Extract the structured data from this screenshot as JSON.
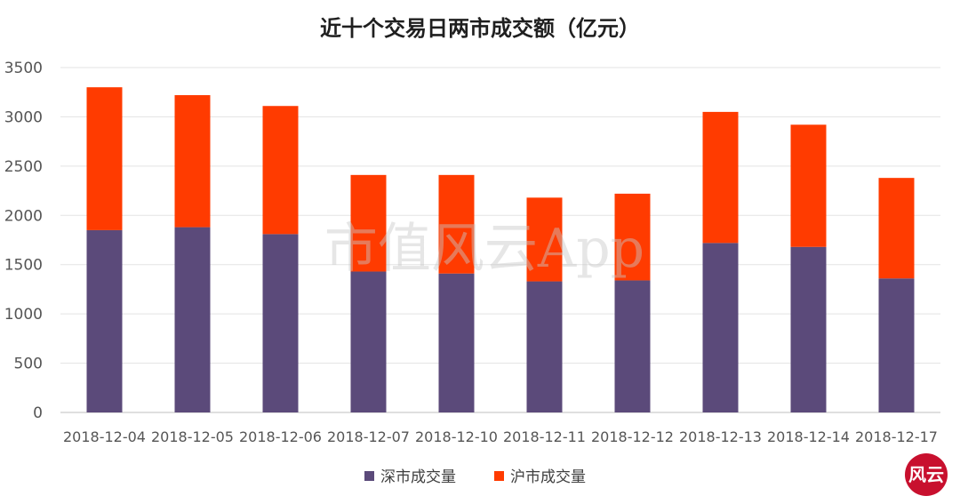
{
  "chart_data": {
    "type": "bar",
    "stacked": true,
    "title": "近十个交易日两市成交额（亿元）",
    "xlabel": "",
    "ylabel": "",
    "ylim": [
      0,
      3500
    ],
    "yticks": [
      0,
      500,
      1000,
      1500,
      2000,
      2500,
      3000,
      3500
    ],
    "grid": true,
    "legend_position": "bottom",
    "categories": [
      "2018-12-04",
      "2018-12-05",
      "2018-12-06",
      "2018-12-07",
      "2018-12-10",
      "2018-12-11",
      "2018-12-12",
      "2018-12-13",
      "2018-12-14",
      "2018-12-17"
    ],
    "series": [
      {
        "name": "深市成交量",
        "color": "#5b4a7a",
        "values": [
          1850,
          1880,
          1810,
          1430,
          1410,
          1330,
          1340,
          1720,
          1680,
          1360
        ]
      },
      {
        "name": "沪市成交量",
        "color": "#ff3b00",
        "values": [
          1450,
          1340,
          1300,
          980,
          1000,
          850,
          880,
          1330,
          1240,
          1020
        ]
      }
    ]
  },
  "watermark": "市值风云App",
  "badge": {
    "text": "风云",
    "color": "#c8102e"
  }
}
